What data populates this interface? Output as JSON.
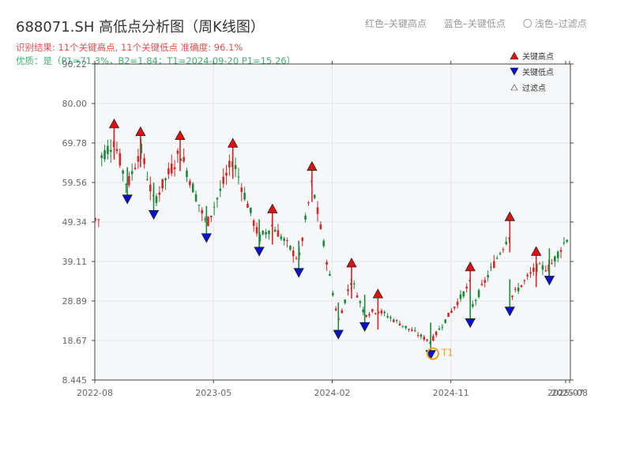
{
  "header": {
    "title": "688071.SH 高低点分析图（周K线图）",
    "subtitle": "识别结果: 11个关键高点, 11个关键低点   准确度: 96.1%",
    "quality": "优质：是（P1=71.3%，B2=1.84；T1=2024-09-20 P1=15.26）"
  },
  "top_legend": {
    "red": "红色–关键高点",
    "blue": "蓝色–关键低点",
    "circle": "〇",
    "light": "浅色–过滤点"
  },
  "legend": {
    "high": "关键高点",
    "low": "关键低点",
    "filtered": "过滤点"
  },
  "colors": {
    "up": "#d62728",
    "down": "#1a8a3a",
    "high_marker": "#e01010",
    "low_marker": "#0a10d0",
    "t1_marker": "#f0a020",
    "grid": "#e3e6ea",
    "plot_bg": "#f6f7f9"
  },
  "chart_data": {
    "type": "candlestick",
    "title": "688071.SH 高低点分析图（周K线图）",
    "ylim": [
      8.445,
      90.22
    ],
    "yticks": [
      "8.445",
      "18.67",
      "28.89",
      "39.11",
      "49.34",
      "59.56",
      "69.78",
      "80.00",
      "90.22"
    ],
    "xticks": [
      "2022-08",
      "2023-05",
      "2024-02",
      "2024-11",
      "2025-07",
      "2025-08"
    ],
    "x_range": [
      "2022-08",
      "2025-08"
    ],
    "grid": true,
    "legend_position": "top-right",
    "series": [
      {
        "name": "关键高点",
        "points": [
          {
            "date": "2022-09",
            "price": 74.5
          },
          {
            "date": "2022-11",
            "price": 72.5
          },
          {
            "date": "2023-02",
            "price": 71.5
          },
          {
            "date": "2023-06",
            "price": 69.5
          },
          {
            "date": "2023-09",
            "price": 52.5
          },
          {
            "date": "2023-12",
            "price": 63.5
          },
          {
            "date": "2024-03",
            "price": 38.5
          },
          {
            "date": "2024-05",
            "price": 30.5
          },
          {
            "date": "2024-12",
            "price": 37.5
          },
          {
            "date": "2025-03",
            "price": 50.5
          },
          {
            "date": "2025-05",
            "price": 41.5
          }
        ]
      },
      {
        "name": "关键低点",
        "points": [
          {
            "date": "2022-10",
            "price": 55.5
          },
          {
            "date": "2022-12",
            "price": 51.5
          },
          {
            "date": "2023-04",
            "price": 45.5
          },
          {
            "date": "2023-08",
            "price": 42.0
          },
          {
            "date": "2023-11",
            "price": 36.5
          },
          {
            "date": "2024-02",
            "price": 20.5
          },
          {
            "date": "2024-04",
            "price": 22.5
          },
          {
            "date": "2024-09",
            "price": 15.26
          },
          {
            "date": "2024-12",
            "price": 23.5
          },
          {
            "date": "2025-03",
            "price": 26.5
          },
          {
            "date": "2025-06",
            "price": 34.5
          }
        ]
      }
    ],
    "annotations": [
      {
        "label": "T1",
        "date": "2024-09-20",
        "price": 15.26
      }
    ]
  }
}
